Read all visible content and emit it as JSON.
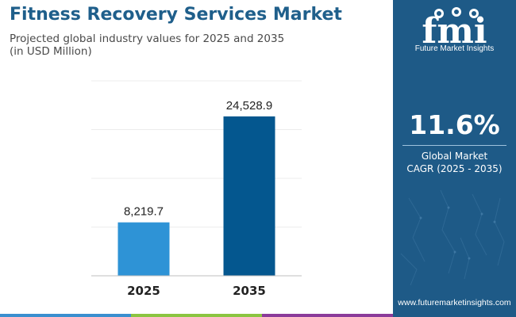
{
  "header": {
    "title": "Fitness Recovery Services Market",
    "subtitle_line1": "Projected global industry values for 2025 and 2035",
    "subtitle_line2": "(in USD Million)"
  },
  "chart_data": {
    "type": "bar",
    "title": "Fitness Recovery Services Market",
    "subtitle": "Projected global industry values for 2025 and 2035 (in USD Million)",
    "categories": [
      "2025",
      "2035"
    ],
    "values": [
      8219.7,
      24528.9
    ],
    "value_labels": [
      "8,219.7",
      "24,528.9"
    ],
    "bar_colors": [
      "#2e93d6",
      "#04578f"
    ],
    "xlabel": "",
    "ylabel": "",
    "ylim": [
      0,
      30000
    ],
    "grid": true,
    "legend": "none"
  },
  "side_panel": {
    "logo_letters": "fmi",
    "logo_text": "Future Market Insights",
    "cagr_value": "11.6%",
    "cagr_label_line1": "Global Market",
    "cagr_label_line2": "CAGR (2025 - 2035)",
    "website": "www.futuremarketinsights.com",
    "background_color": "#1e5a87"
  },
  "colors": {
    "title": "#1f5f8b",
    "strip": [
      "#3a8fcf",
      "#8bc541",
      "#8b3b9a",
      "#1e5a87"
    ]
  }
}
